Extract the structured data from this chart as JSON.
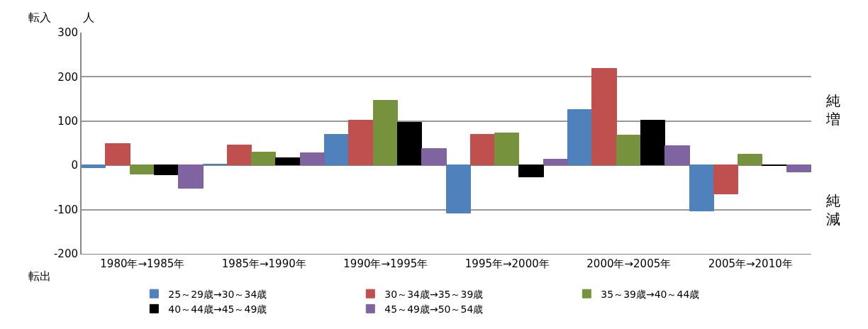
{
  "chart_data": {
    "type": "bar",
    "categories": [
      "1980年→1985年",
      "1985年→1990年",
      "1990年→1995年",
      "1995年→2000年",
      "2000年→2005年",
      "2005年→2010年"
    ],
    "series": [
      {
        "name": "25～29歳→30～34歳",
        "color": "#4f81bd",
        "values": [
          -6,
          2,
          70,
          -108,
          125,
          -104
        ]
      },
      {
        "name": "30～34歳→35～39歳",
        "color": "#c0504d",
        "values": [
          49,
          45,
          101,
          69,
          219,
          -65
        ]
      },
      {
        "name": "35～39歳→40～44歳",
        "color": "#76923c",
        "values": [
          -21,
          29,
          146,
          73,
          67,
          24
        ]
      },
      {
        "name": "40～44歳→45～49歳",
        "color": "#000000",
        "values": [
          -22,
          17,
          96,
          -27,
          101,
          -2
        ]
      },
      {
        "name": "45～49歳→50～54歳",
        "color": "#8064a2",
        "values": [
          -53,
          27,
          37,
          13,
          43,
          -15
        ]
      }
    ],
    "ylim": [
      -200,
      300
    ],
    "yticks": [
      -200,
      -100,
      0,
      100,
      200,
      300
    ],
    "grid": "y",
    "legend": "bottom",
    "annotations": [
      "転入",
      "人",
      "転出",
      "純増",
      "純減"
    ]
  }
}
